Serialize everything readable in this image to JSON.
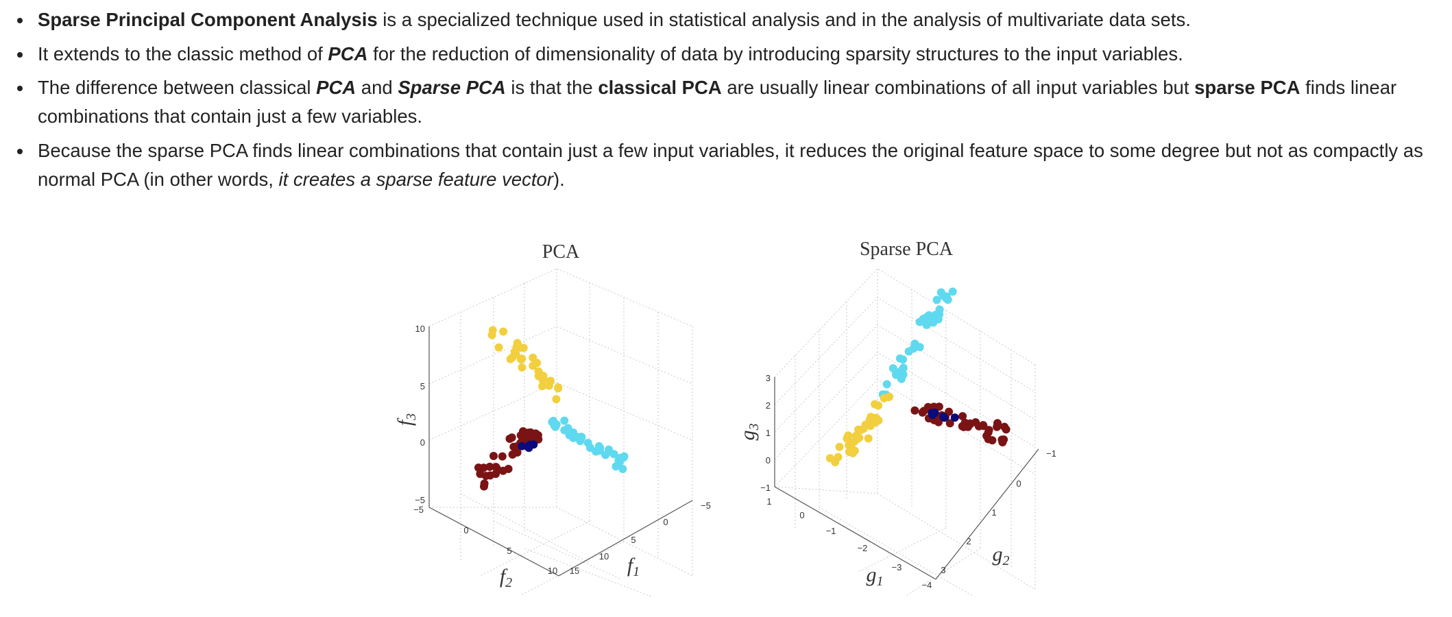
{
  "bullets": [
    {
      "segments": [
        {
          "t": "Sparse Principal Component Analysis",
          "s": "b"
        },
        {
          "t": " is a specialized technique used in statistical analysis and in the analysis of multivariate data sets.",
          "s": ""
        }
      ]
    },
    {
      "segments": [
        {
          "t": "It extends to the classic method of ",
          "s": ""
        },
        {
          "t": "PCA",
          "s": "bi"
        },
        {
          "t": " for the reduction of dimensionality of data by introducing sparsity structures to the input variables.",
          "s": ""
        }
      ]
    },
    {
      "segments": [
        {
          "t": "The difference between classical ",
          "s": ""
        },
        {
          "t": "PCA",
          "s": "bi"
        },
        {
          "t": " and ",
          "s": ""
        },
        {
          "t": "Sparse PCA",
          "s": "bi"
        },
        {
          "t": " is that the ",
          "s": ""
        },
        {
          "t": "classical PCA",
          "s": "b"
        },
        {
          "t": " are usually linear combinations of all input variables but ",
          "s": ""
        },
        {
          "t": "sparse PCA",
          "s": "b"
        },
        {
          "t": " finds linear combinations that contain just a few variables.",
          "s": ""
        }
      ]
    },
    {
      "segments": [
        {
          "t": "Because the sparse PCA finds linear combinations that contain just a few input variables, it reduces the original feature space to some degree but not as compactly as normal PCA (in other words, ",
          "s": ""
        },
        {
          "t": "it creates a sparse feature vector",
          "s": "i"
        },
        {
          "t": ").",
          "s": ""
        }
      ]
    }
  ],
  "colors": {
    "yellow": "#f2cf3e",
    "cyan": "#5fd9ef",
    "maroon": "#7a1414",
    "navy": "#0b0b7a"
  },
  "figure": {
    "pca": {
      "title": "PCA",
      "z_label": {
        "base": "f",
        "sub": "3"
      },
      "x_label": {
        "base": "f",
        "sub": "2"
      },
      "y_label": {
        "base": "f",
        "sub": "1"
      },
      "z_ticks": [
        "10",
        "5",
        "0",
        "−5"
      ],
      "x_ticks": [
        "−5",
        "0",
        "5",
        "10",
        "15"
      ],
      "y_ticks": [
        "−5",
        "0",
        "5",
        "10"
      ]
    },
    "sparse": {
      "title": "Sparse PCA",
      "z_label": {
        "base": "g",
        "sub": "3"
      },
      "x_label": {
        "base": "g",
        "sub": "1"
      },
      "y_label": {
        "base": "g",
        "sub": "2"
      },
      "z_ticks": [
        "3",
        "2",
        "1",
        "0",
        "−1"
      ],
      "x_ticks": [
        "1",
        "0",
        "−1",
        "−2",
        "−3",
        "−4"
      ],
      "y_ticks": [
        "−1",
        "0",
        "1",
        "2",
        "3"
      ]
    }
  }
}
